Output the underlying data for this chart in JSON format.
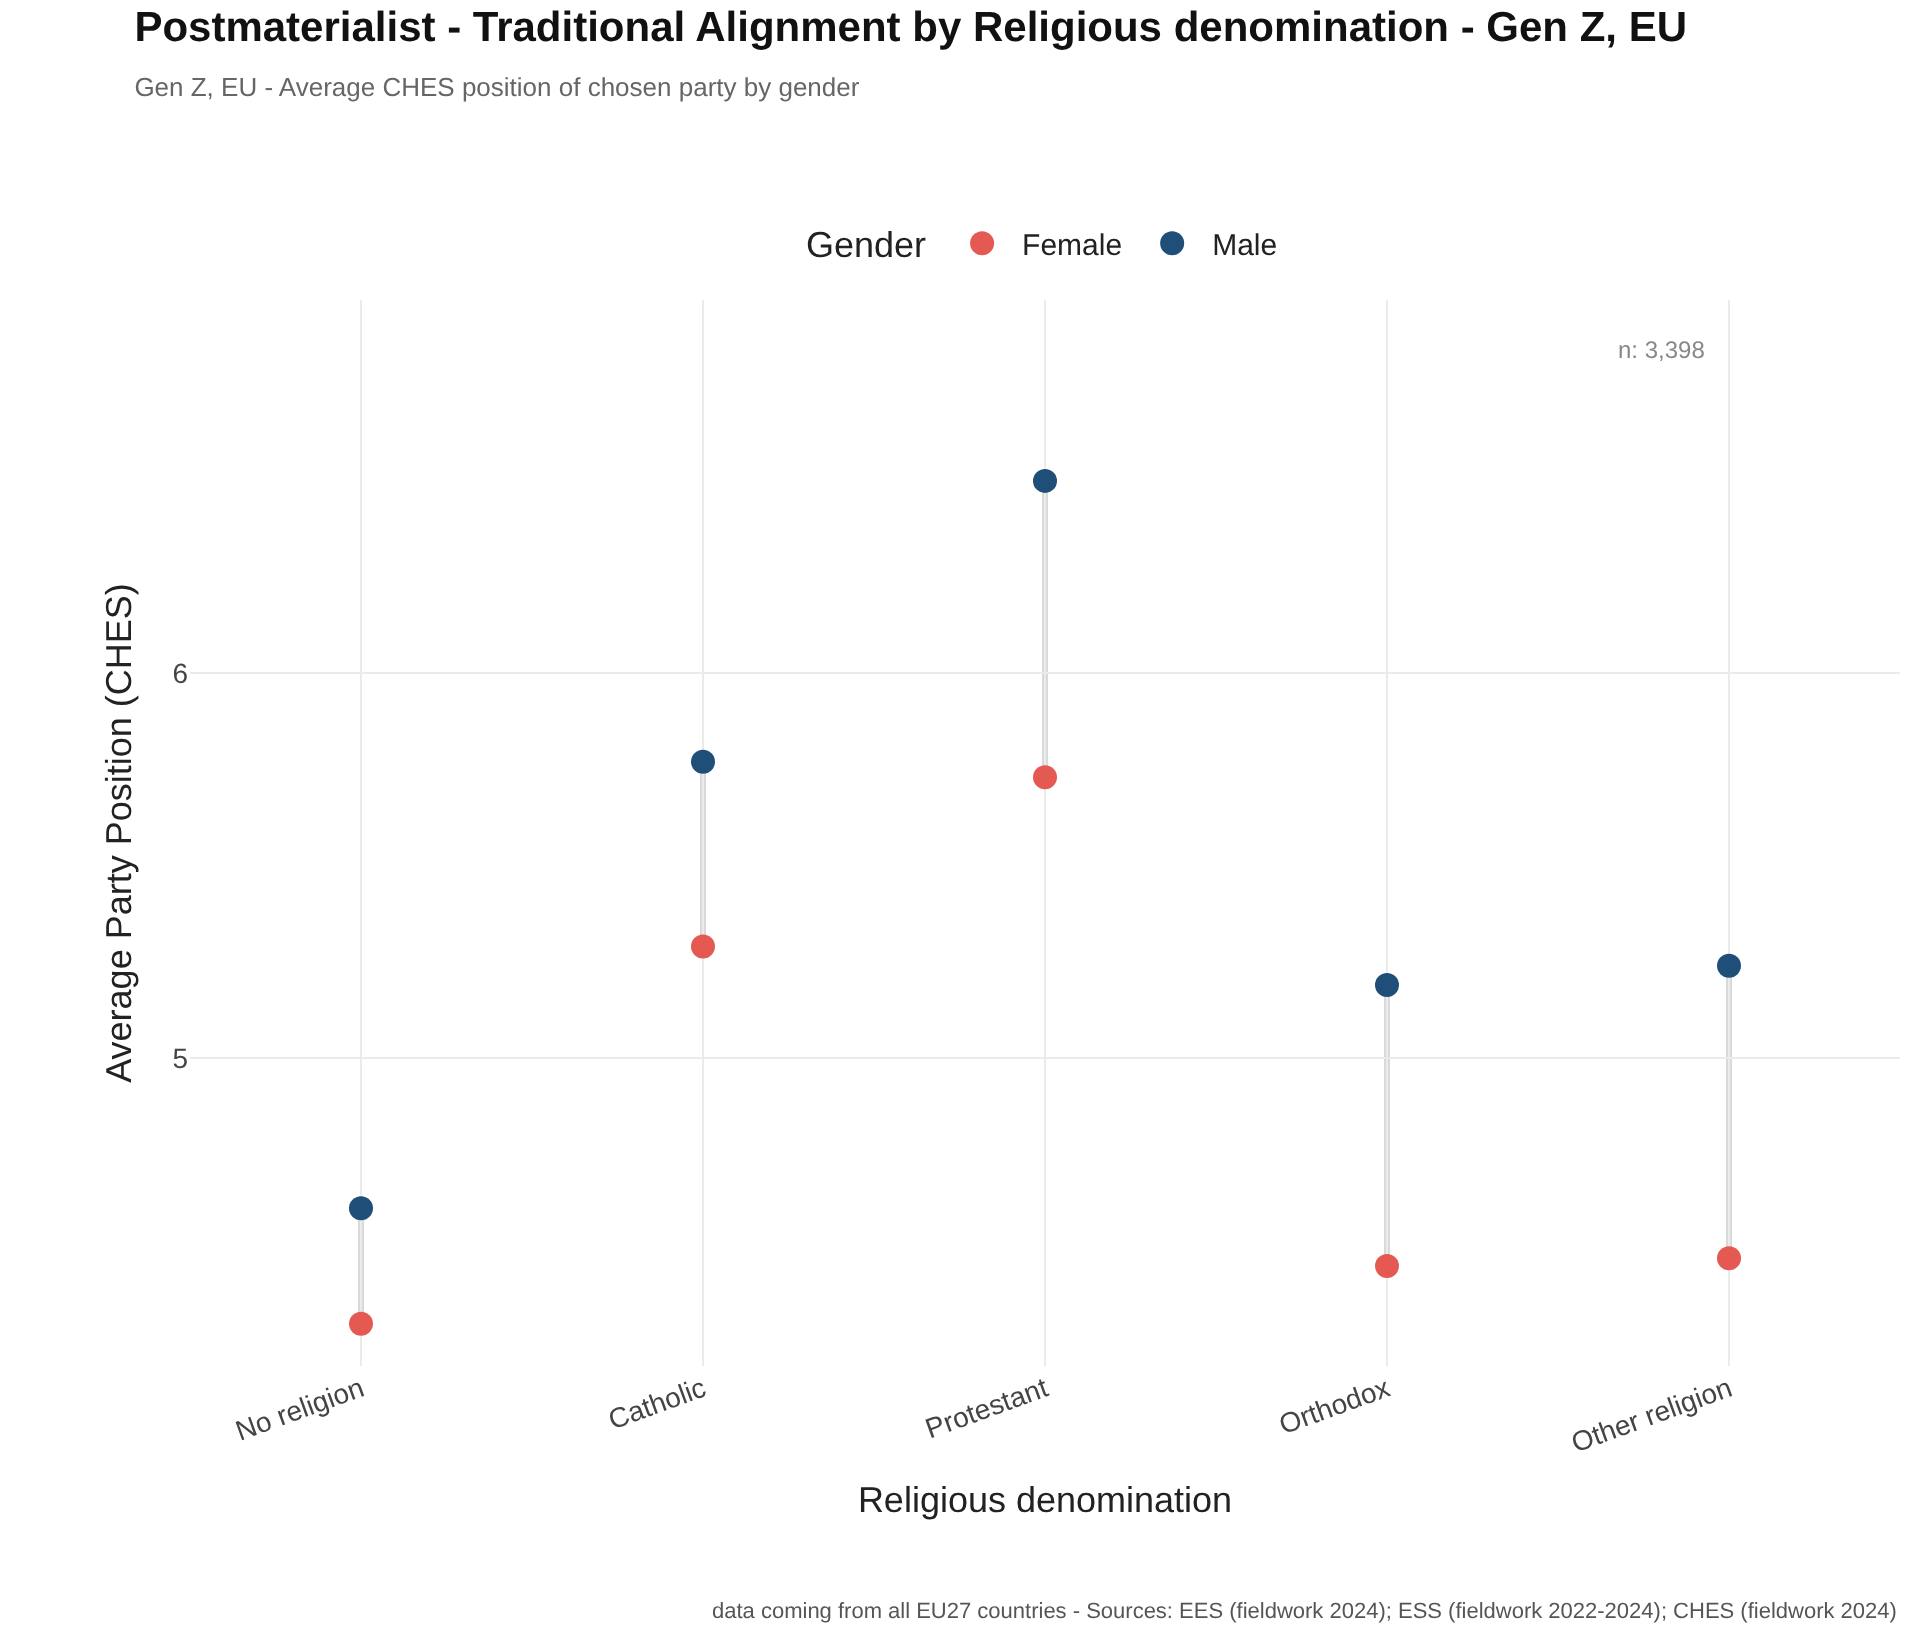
{
  "chart_data": {
    "type": "scatter",
    "title": "Postmaterialist - Traditional Alignment by Religious denomination - Gen Z, EU",
    "subtitle": "Gen Z, EU - Average CHES position of chosen party by gender",
    "xlabel": "Religious denomination",
    "ylabel": "Average Party Position (CHES)",
    "legend_title": "Gender",
    "categories": [
      "No religion",
      "Catholic",
      "Protestant",
      "Orthodox",
      "Other religion"
    ],
    "series": [
      {
        "name": "Female",
        "color": "#e45a53",
        "values": [
          4.31,
          5.29,
          5.73,
          4.46,
          4.48
        ]
      },
      {
        "name": "Male",
        "color": "#1f4e79",
        "values": [
          4.61,
          5.77,
          6.5,
          5.19,
          5.24
        ]
      }
    ],
    "ylim": [
      4.2,
      6.97
    ],
    "yticks": [
      5,
      6
    ],
    "annotations": [
      "n: 3,398",
      "data coming from all EU27 countries - Sources: EES (fieldwork 2024); ESS (fieldwork 2022-2024); CHES (fieldwork 2024)"
    ],
    "grid": true,
    "legend": "top",
    "marker": "circle"
  }
}
